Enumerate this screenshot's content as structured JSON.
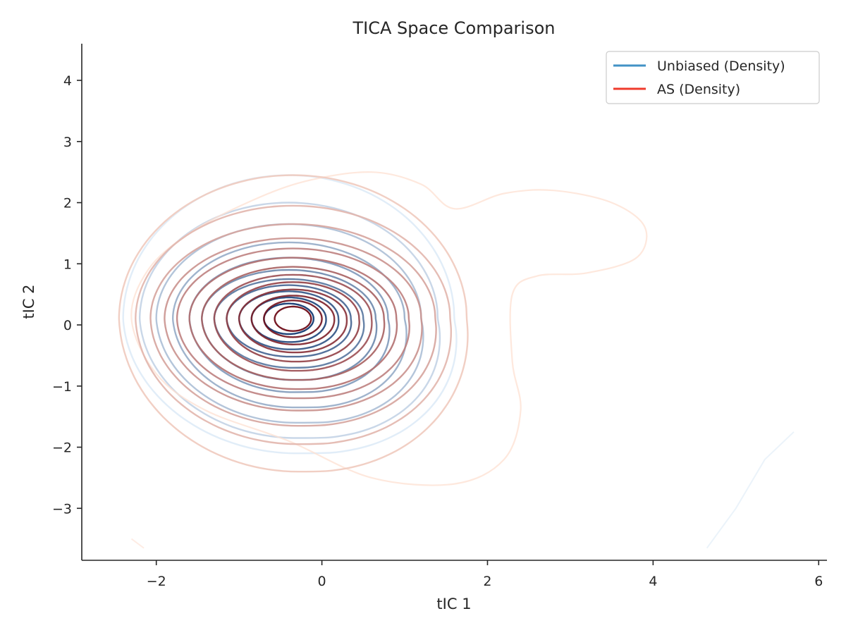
{
  "chart_data": {
    "type": "contour",
    "title": "TICA Space Comparison",
    "xlabel": "tIC 1",
    "ylabel": "tIC 2",
    "xlim": [
      -2.9,
      6.1
    ],
    "ylim": [
      -3.85,
      4.6
    ],
    "xticks": [
      -2,
      0,
      2,
      4,
      6
    ],
    "yticks": [
      -3,
      -2,
      -1,
      0,
      1,
      2,
      3,
      4
    ],
    "grid": false,
    "legend_position": "top-right",
    "series": [
      {
        "name": "Unbiased (Density)",
        "legend_color": "#4292c6",
        "colormap": [
          "#deebf7",
          "#08306b"
        ],
        "center": [
          -0.4,
          0.1
        ],
        "levels": [
          {
            "sx": 0.3,
            "up": 0.25,
            "down": 0.25,
            "skew": 0
          },
          {
            "sx": 0.45,
            "up": 0.35,
            "down": 0.38,
            "skew": 0.02
          },
          {
            "sx": 0.6,
            "up": 0.45,
            "down": 0.5,
            "skew": 0.05
          },
          {
            "sx": 0.75,
            "up": 0.55,
            "down": 0.62,
            "skew": 0.08
          },
          {
            "sx": 0.9,
            "up": 0.65,
            "down": 0.8,
            "skew": 0.12
          },
          {
            "sx": 1.05,
            "up": 0.8,
            "down": 1.0,
            "skew": 0.15
          },
          {
            "sx": 1.2,
            "up": 1.0,
            "down": 1.2,
            "skew": 0.2
          },
          {
            "sx": 1.4,
            "up": 1.25,
            "down": 1.45,
            "skew": 0.25
          },
          {
            "sx": 1.6,
            "up": 1.55,
            "down": 1.7,
            "skew": 0.28
          },
          {
            "sx": 1.8,
            "up": 1.9,
            "down": 1.95,
            "skew": 0.3
          },
          {
            "sx": 2.0,
            "up": 2.35,
            "down": 2.2,
            "skew": 0.32
          }
        ],
        "tail": [
          [
            4.65,
            -3.65
          ],
          [
            5.0,
            -3.0
          ],
          [
            5.35,
            -2.2
          ],
          [
            5.7,
            -1.75
          ]
        ]
      },
      {
        "name": "AS (Density)",
        "legend_color": "#ef3b2c",
        "colormap": [
          "#fee0d2",
          "#67000d"
        ],
        "center": [
          -0.35,
          0.1
        ],
        "levels": [
          {
            "sx": 0.22,
            "up": 0.2,
            "down": 0.2,
            "skew": 0
          },
          {
            "sx": 0.35,
            "up": 0.3,
            "down": 0.3,
            "skew": 0
          },
          {
            "sx": 0.5,
            "up": 0.38,
            "down": 0.42,
            "skew": 0.02
          },
          {
            "sx": 0.65,
            "up": 0.48,
            "down": 0.55,
            "skew": 0.04
          },
          {
            "sx": 0.8,
            "up": 0.6,
            "down": 0.7,
            "skew": 0.06
          },
          {
            "sx": 0.95,
            "up": 0.72,
            "down": 0.85,
            "skew": 0.08
          },
          {
            "sx": 1.1,
            "up": 0.85,
            "down": 1.0,
            "skew": 0.1
          },
          {
            "sx": 1.25,
            "up": 1.0,
            "down": 1.15,
            "skew": 0.12
          },
          {
            "sx": 1.4,
            "up": 1.15,
            "down": 1.3,
            "skew": 0.14
          },
          {
            "sx": 1.55,
            "up": 1.32,
            "down": 1.5,
            "skew": 0.16
          },
          {
            "sx": 1.72,
            "up": 1.55,
            "down": 1.75,
            "skew": 0.18
          },
          {
            "sx": 1.9,
            "up": 1.85,
            "down": 2.05,
            "skew": 0.2
          },
          {
            "sx": 2.1,
            "up": 2.35,
            "down": 2.5,
            "skew": 0.22
          }
        ],
        "lobe": [
          [
            -2.3,
            0.1
          ],
          [
            -2.1,
            0.9
          ],
          [
            -1.6,
            1.5
          ],
          [
            -0.9,
            2.0
          ],
          [
            -0.2,
            2.35
          ],
          [
            0.6,
            2.5
          ],
          [
            1.2,
            2.3
          ],
          [
            1.6,
            1.9
          ],
          [
            2.2,
            2.15
          ],
          [
            2.8,
            2.2
          ],
          [
            3.5,
            2.0
          ],
          [
            3.9,
            1.6
          ],
          [
            3.8,
            1.1
          ],
          [
            3.2,
            0.85
          ],
          [
            2.6,
            0.8
          ],
          [
            2.3,
            0.5
          ],
          [
            2.3,
            -0.6
          ],
          [
            2.4,
            -1.4
          ],
          [
            2.2,
            -2.2
          ],
          [
            1.6,
            -2.6
          ],
          [
            0.6,
            -2.5
          ],
          [
            -0.4,
            -1.9
          ],
          [
            -1.4,
            -1.4
          ],
          [
            -2.0,
            -0.8
          ]
        ],
        "tail": [
          [
            -2.3,
            -3.5
          ],
          [
            -2.15,
            -3.65
          ]
        ]
      }
    ]
  }
}
